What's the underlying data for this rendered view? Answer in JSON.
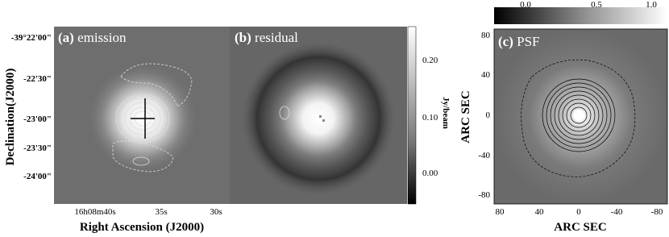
{
  "panels": [
    {
      "tag": "(a)",
      "label": "emission",
      "y_title": "Declination(J2000)",
      "x_title": "Right Ascension (J2000)",
      "y_ticks": [
        "-39°22'00\"",
        "-22'30\"",
        "-23'00\"",
        "-23'30\"",
        "-24'00\""
      ],
      "x_ticks": [
        "16h08m40s",
        "35s",
        "30s"
      ]
    },
    {
      "tag": "(b)",
      "label": "residual",
      "colorbar_title": "Jy/beam",
      "colorbar_ticks": [
        "0.20",
        "0.10",
        "0.00"
      ]
    },
    {
      "tag": "(c)",
      "label": "PSF",
      "y_title": "ARC SEC",
      "x_title": "ARC SEC",
      "y_ticks": [
        "80",
        "40",
        "0",
        "-40",
        "-80"
      ],
      "x_ticks": [
        "80",
        "40",
        "0",
        "-40",
        "-80"
      ],
      "colorbar_ticks": [
        "0.0",
        "0.5",
        "1.0"
      ]
    }
  ]
}
